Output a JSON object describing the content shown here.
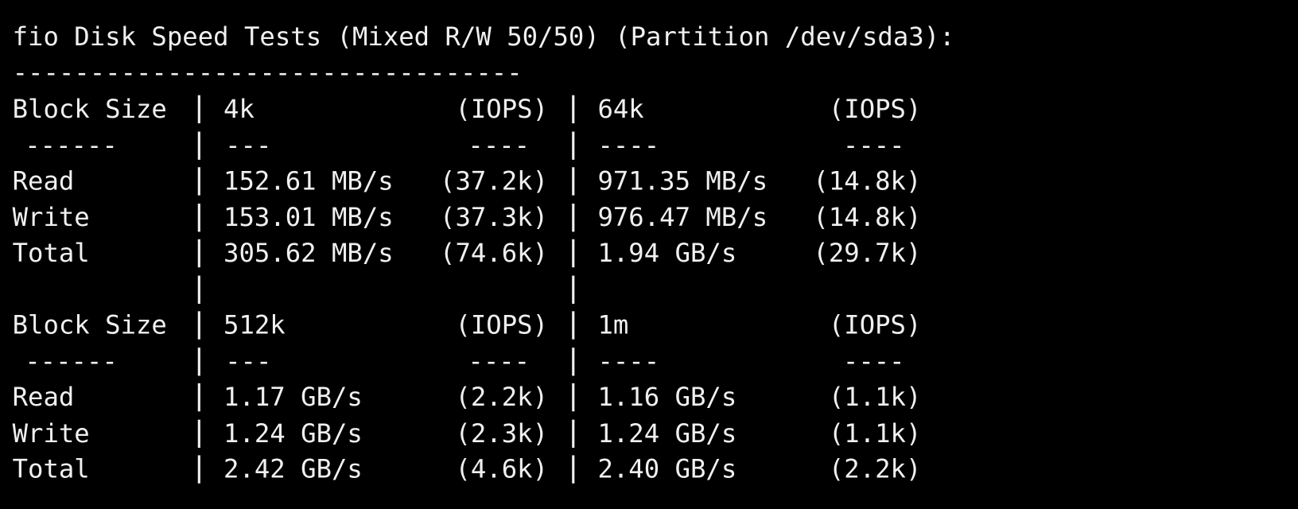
{
  "header": {
    "title": "fio Disk Speed Tests (Mixed R/W 50/50) (Partition /dev/sda3):",
    "separator": "---------------------------------"
  },
  "tables": [
    {
      "header": [
        "Block Size",
        "4k",
        "(IOPS)",
        "64k",
        "(IOPS)"
      ],
      "rule": [
        "------",
        "---",
        "----",
        "----",
        "----"
      ],
      "rows": [
        [
          "Read",
          "152.61 MB/s",
          "(37.2k)",
          "971.35 MB/s",
          "(14.8k)"
        ],
        [
          "Write",
          "153.01 MB/s",
          "(37.3k)",
          "976.47 MB/s",
          "(14.8k)"
        ],
        [
          "Total",
          "305.62 MB/s",
          "(74.6k)",
          "1.94 GB/s",
          "(29.7k)"
        ]
      ]
    },
    {
      "header": [
        "Block Size",
        "512k",
        "(IOPS)",
        "1m",
        "(IOPS)"
      ],
      "rule": [
        "------",
        "---",
        "----",
        "----",
        "----"
      ],
      "rows": [
        [
          "Read",
          "1.17 GB/s",
          "(2.2k)",
          "1.16 GB/s",
          "(1.1k)"
        ],
        [
          "Write",
          "1.24 GB/s",
          "(2.3k)",
          "1.24 GB/s",
          "(1.1k)"
        ],
        [
          "Total",
          "2.42 GB/s",
          "(4.6k)",
          "2.40 GB/s",
          "(2.2k)"
        ]
      ]
    }
  ]
}
